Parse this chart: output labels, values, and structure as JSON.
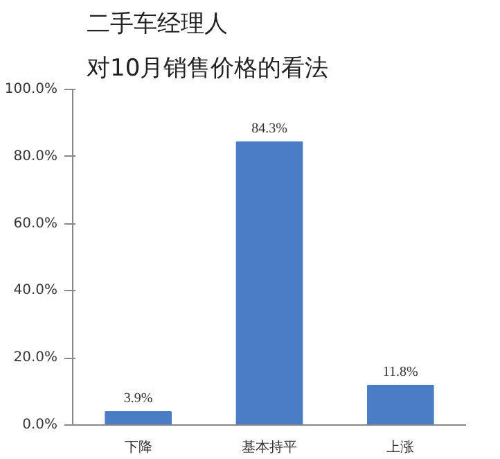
{
  "chart_data": {
    "type": "bar",
    "title": "二手车经理人",
    "subtitle": "对10月销售价格的看法",
    "categories": [
      "下降",
      "基本持平",
      "上涨"
    ],
    "values": [
      3.9,
      84.3,
      11.8
    ],
    "value_labels": [
      "3.9%",
      "84.3%",
      "11.8%"
    ],
    "color": "#4a7dc6",
    "ylim": [
      0,
      100
    ],
    "yticks": [
      {
        "value": 0,
        "label": "0.0%"
      },
      {
        "value": 20,
        "label": "20.0%"
      },
      {
        "value": 40,
        "label": "40.0%"
      },
      {
        "value": 60,
        "label": "60.0%"
      },
      {
        "value": 80,
        "label": "80.0%"
      },
      {
        "value": 100,
        "label": "100.0%"
      }
    ],
    "grid": false
  }
}
